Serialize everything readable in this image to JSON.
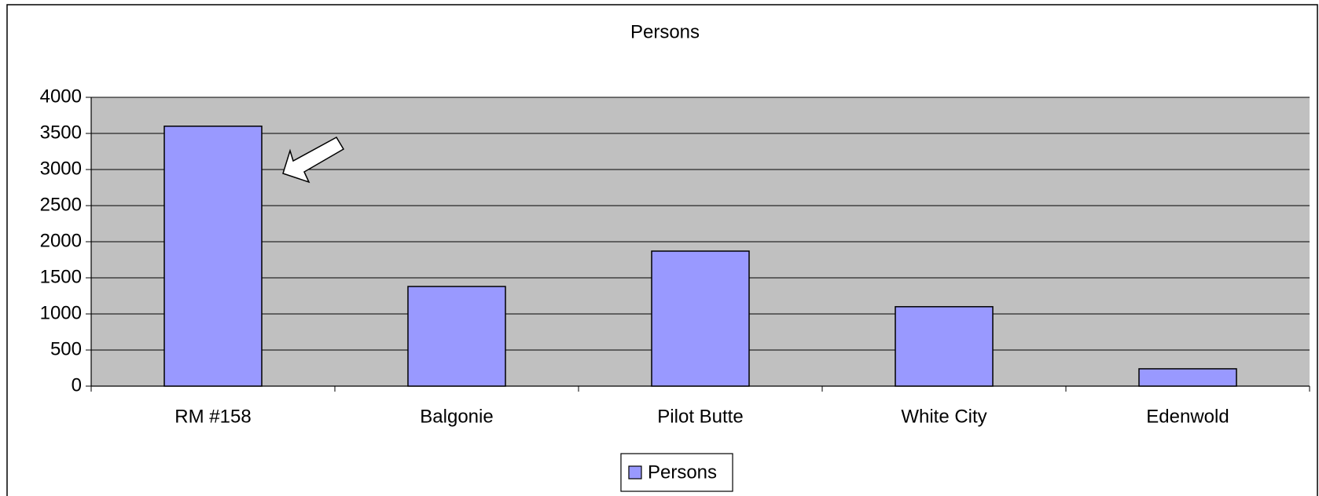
{
  "chart_data": {
    "type": "bar",
    "title": "Persons",
    "categories": [
      "RM #158",
      "Balgonie",
      "Pilot Butte",
      "White City",
      "Edenwold"
    ],
    "series": [
      {
        "name": "Persons",
        "color": "#9999ff",
        "values": [
          3600,
          1380,
          1870,
          1100,
          240
        ]
      }
    ],
    "ylim": [
      0,
      4000
    ],
    "yticks": [
      0,
      500,
      1000,
      1500,
      2000,
      2500,
      3000,
      3500,
      4000
    ],
    "grid": true,
    "legend": "bottom"
  }
}
